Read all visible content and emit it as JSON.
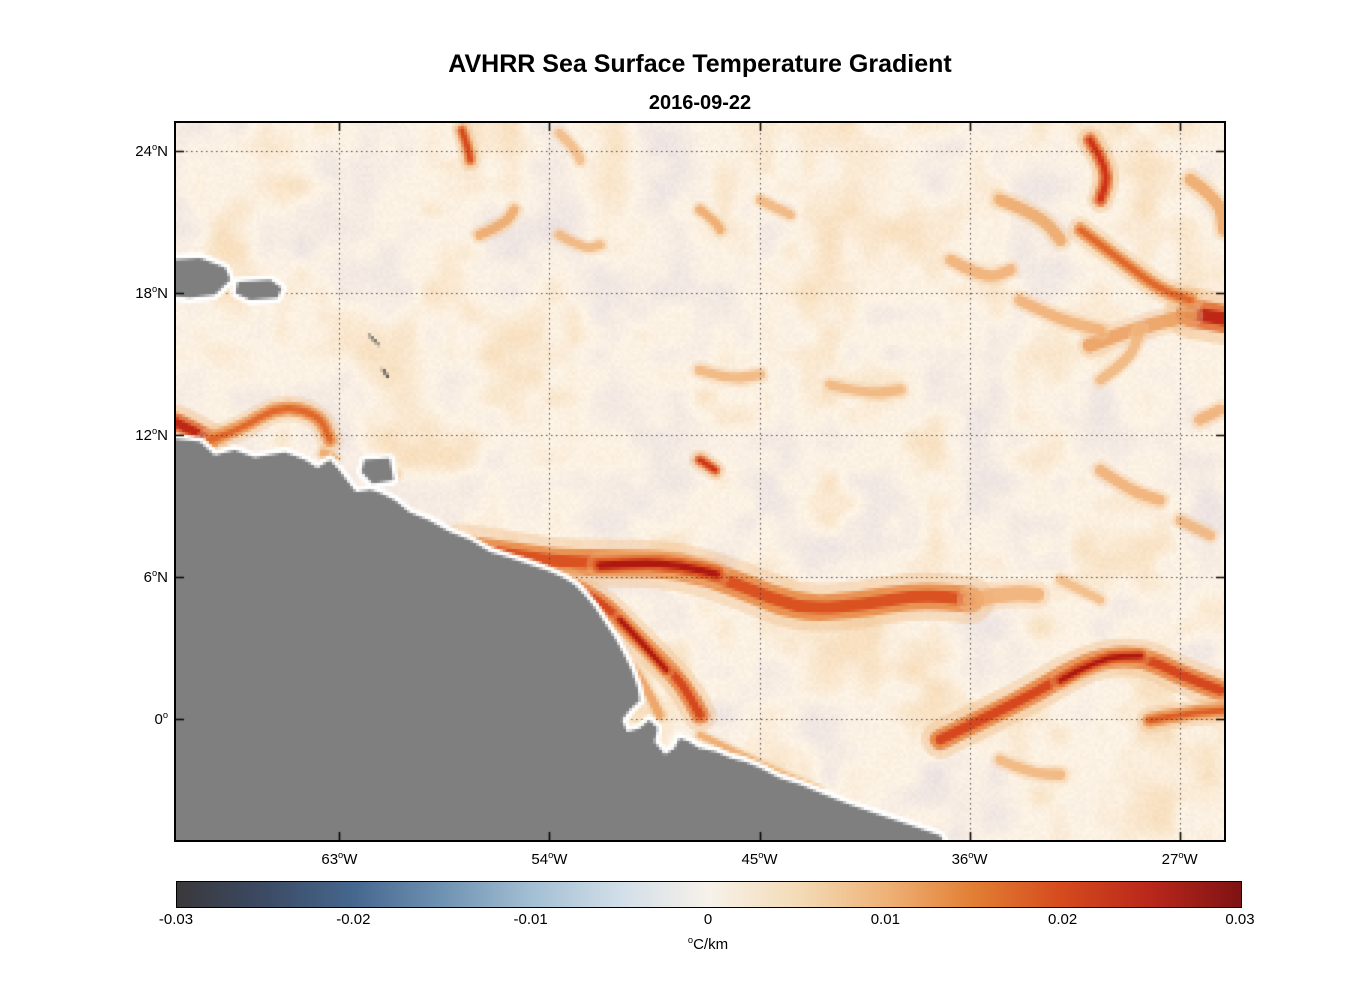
{
  "title": "AVHRR Sea Surface Temperature Gradient",
  "subtitle": "2016-09-22",
  "chart_data": {
    "type": "heatmap",
    "title": "AVHRR Sea Surface Temperature Gradient",
    "subtitle": "2016-09-22",
    "variable": "sea surface temperature gradient",
    "units": "°C/km",
    "grid": true,
    "x_axis": {
      "range": [
        -70.0,
        -25.1
      ],
      "ticks": [
        -63,
        -54,
        -45,
        -36,
        -27
      ],
      "tick_labels": [
        "63°W",
        "54°W",
        "45°W",
        "36°W",
        "27°W"
      ]
    },
    "y_axis": {
      "range": [
        -5.1,
        25.2
      ],
      "ticks": [
        24,
        18,
        12,
        6,
        0
      ],
      "tick_labels": [
        "24°N",
        "18°N",
        "12°N",
        "6°N",
        "0°"
      ]
    },
    "colorbar": {
      "orientation": "horizontal",
      "label": "°C/km",
      "ticks": [
        -0.03,
        -0.02,
        -0.01,
        0,
        0.01,
        0.02,
        0.03
      ],
      "tick_labels": [
        "-0.03",
        "-0.02",
        "-0.01",
        "0",
        "0.01",
        "0.02",
        "0.03"
      ],
      "stops": [
        {
          "pos": 0.0,
          "color": "#3a393c"
        },
        {
          "pos": 0.08,
          "color": "#3c4a63"
        },
        {
          "pos": 0.167,
          "color": "#46688f"
        },
        {
          "pos": 0.25,
          "color": "#7093b3"
        },
        {
          "pos": 0.333,
          "color": "#a3bfd3"
        },
        {
          "pos": 0.417,
          "color": "#d2dfe9"
        },
        {
          "pos": 0.5,
          "color": "#f7f2ea"
        },
        {
          "pos": 0.583,
          "color": "#f4dcb8"
        },
        {
          "pos": 0.667,
          "color": "#efb277"
        },
        {
          "pos": 0.75,
          "color": "#e27e33"
        },
        {
          "pos": 0.833,
          "color": "#d54a1e"
        },
        {
          "pos": 0.917,
          "color": "#b8271b"
        },
        {
          "pos": 1.0,
          "color": "#7f1314"
        }
      ]
    },
    "colors": {
      "land": "#7f7f7f",
      "coast": "#ffffff",
      "ocean_base": "#fcf2e4",
      "grid": "#2d2d3c",
      "axis": "#000000"
    },
    "land_polygons": [
      [
        [
          -0.02,
          0.436
        ],
        [
          0.023,
          0.445
        ],
        [
          0.037,
          0.463
        ],
        [
          0.056,
          0.456
        ],
        [
          0.075,
          0.467
        ],
        [
          0.104,
          0.459
        ],
        [
          0.123,
          0.47
        ],
        [
          0.135,
          0.481
        ],
        [
          0.147,
          0.47
        ],
        [
          0.156,
          0.484
        ],
        [
          0.164,
          0.5
        ],
        [
          0.172,
          0.515
        ],
        [
          0.186,
          0.512
        ],
        [
          0.196,
          0.517
        ],
        [
          0.209,
          0.526
        ],
        [
          0.223,
          0.543
        ],
        [
          0.242,
          0.554
        ],
        [
          0.261,
          0.57
        ],
        [
          0.281,
          0.582
        ],
        [
          0.3,
          0.598
        ],
        [
          0.319,
          0.607
        ],
        [
          0.338,
          0.616
        ],
        [
          0.357,
          0.626
        ],
        [
          0.371,
          0.635
        ],
        [
          0.381,
          0.644
        ],
        [
          0.39,
          0.658
        ],
        [
          0.4,
          0.676
        ],
        [
          0.409,
          0.696
        ],
        [
          0.419,
          0.718
        ],
        [
          0.428,
          0.742
        ],
        [
          0.435,
          0.763
        ],
        [
          0.441,
          0.788
        ],
        [
          0.443,
          0.805
        ],
        [
          0.433,
          0.819
        ],
        [
          0.426,
          0.833
        ],
        [
          0.431,
          0.849
        ],
        [
          0.443,
          0.844
        ],
        [
          0.452,
          0.833
        ],
        [
          0.46,
          0.844
        ],
        [
          0.457,
          0.863
        ],
        [
          0.467,
          0.881
        ],
        [
          0.476,
          0.872
        ],
        [
          0.481,
          0.858
        ],
        [
          0.49,
          0.863
        ],
        [
          0.5,
          0.872
        ],
        [
          0.514,
          0.877
        ],
        [
          0.529,
          0.886
        ],
        [
          0.543,
          0.891
        ],
        [
          0.557,
          0.9
        ],
        [
          0.576,
          0.914
        ],
        [
          0.595,
          0.923
        ],
        [
          0.619,
          0.937
        ],
        [
          0.643,
          0.951
        ],
        [
          0.672,
          0.965
        ],
        [
          0.7,
          0.979
        ],
        [
          0.729,
          0.994
        ],
        [
          0.745,
          1.03
        ],
        [
          -0.02,
          1.03
        ]
      ],
      [
        [
          0.18,
          0.47
        ],
        [
          0.204,
          0.468
        ],
        [
          0.208,
          0.498
        ],
        [
          0.188,
          0.503
        ],
        [
          0.177,
          0.486
        ]
      ],
      [
        [
          -0.02,
          0.192
        ],
        [
          0.023,
          0.188
        ],
        [
          0.047,
          0.202
        ],
        [
          0.052,
          0.219
        ],
        [
          0.037,
          0.24
        ],
        [
          0.013,
          0.244
        ],
        [
          -0.02,
          0.238
        ]
      ],
      [
        [
          0.059,
          0.222
        ],
        [
          0.09,
          0.219
        ],
        [
          0.101,
          0.23
        ],
        [
          0.097,
          0.244
        ],
        [
          0.071,
          0.247
        ],
        [
          0.057,
          0.237
        ]
      ]
    ],
    "island_marks": [
      [
        [
          0.185,
          0.297
        ],
        [
          0.193,
          0.308
        ]
      ],
      [
        [
          0.198,
          0.344
        ],
        [
          0.202,
          0.354
        ]
      ]
    ],
    "fronts": [
      {
        "pts": [
          [
            0.271,
            0.592
          ],
          [
            0.328,
            0.604
          ],
          [
            0.366,
            0.612
          ],
          [
            0.424,
            0.614
          ],
          [
            0.481,
            0.616
          ],
          [
            0.538,
            0.644
          ],
          [
            0.595,
            0.679
          ],
          [
            0.653,
            0.672
          ],
          [
            0.71,
            0.658
          ],
          [
            0.758,
            0.665
          ]
        ],
        "w": 24,
        "i": 0.82
      },
      {
        "pts": [
          [
            0.405,
            0.617
          ],
          [
            0.443,
            0.613
          ],
          [
            0.481,
            0.616
          ],
          [
            0.515,
            0.629
          ]
        ],
        "w": 14,
        "i": 1.0
      },
      {
        "pts": [
          [
            0.758,
            0.665
          ],
          [
            0.792,
            0.655
          ],
          [
            0.821,
            0.658
          ]
        ],
        "w": 14,
        "i": 0.6
      },
      {
        "pts": [
          [
            0.376,
            0.644
          ],
          [
            0.405,
            0.665
          ],
          [
            0.433,
            0.707
          ],
          [
            0.462,
            0.749
          ],
          [
            0.485,
            0.784
          ],
          [
            0.5,
            0.826
          ]
        ],
        "w": 16,
        "i": 0.85
      },
      {
        "pts": [
          [
            0.424,
            0.693
          ],
          [
            0.447,
            0.728
          ],
          [
            0.468,
            0.763
          ]
        ],
        "w": 9,
        "i": 1.0
      },
      {
        "pts": [
          [
            0.395,
            0.686
          ],
          [
            0.424,
            0.735
          ],
          [
            0.448,
            0.784
          ],
          [
            0.462,
            0.826
          ]
        ],
        "w": 8,
        "i": 0.7
      },
      {
        "pts": [
          [
            0.729,
            0.86
          ],
          [
            0.777,
            0.826
          ],
          [
            0.824,
            0.791
          ],
          [
            0.872,
            0.749
          ],
          [
            0.92,
            0.742
          ],
          [
            0.958,
            0.77
          ],
          [
            0.996,
            0.791
          ]
        ],
        "w": 19,
        "i": 0.85
      },
      {
        "pts": [
          [
            0.844,
            0.777
          ],
          [
            0.882,
            0.745
          ],
          [
            0.92,
            0.743
          ]
        ],
        "w": 11,
        "i": 1.0
      },
      {
        "pts": [
          [
            0.929,
            0.833
          ],
          [
            0.967,
            0.823
          ],
          [
            1.0,
            0.819
          ]
        ],
        "w": 13,
        "i": 0.78
      },
      {
        "pts": [
          [
            0.0,
            0.418
          ],
          [
            0.019,
            0.432
          ],
          [
            0.032,
            0.442
          ]
        ],
        "w": 18,
        "i": 0.95
      },
      {
        "pts": [
          [
            0.032,
            0.442
          ],
          [
            0.061,
            0.428
          ],
          [
            0.099,
            0.393
          ],
          [
            0.137,
            0.407
          ],
          [
            0.147,
            0.442
          ]
        ],
        "w": 13,
        "i": 0.75
      },
      {
        "pts": [
          [
            0.968,
            0.265
          ],
          [
            1.02,
            0.278
          ]
        ],
        "w": 26,
        "i": 0.95
      },
      {
        "pts": [
          [
            0.872,
            0.31
          ],
          [
            0.91,
            0.289
          ],
          [
            0.968,
            0.268
          ]
        ],
        "w": 13,
        "i": 0.7
      },
      {
        "pts": [
          [
            0.872,
            0.024
          ],
          [
            0.891,
            0.066
          ],
          [
            0.882,
            0.107
          ]
        ],
        "w": 13,
        "i": 0.9
      },
      {
        "pts": [
          [
            0.786,
            0.107
          ],
          [
            0.824,
            0.128
          ],
          [
            0.844,
            0.163
          ]
        ],
        "w": 11,
        "i": 0.65
      },
      {
        "pts": [
          [
            0.739,
            0.191
          ],
          [
            0.772,
            0.219
          ],
          [
            0.796,
            0.205
          ]
        ],
        "w": 10,
        "i": 0.6
      },
      {
        "pts": [
          [
            0.863,
            0.149
          ],
          [
            0.901,
            0.191
          ],
          [
            0.939,
            0.233
          ],
          [
            0.968,
            0.247
          ]
        ],
        "w": 13,
        "i": 0.75
      },
      {
        "pts": [
          [
            0.968,
            0.079
          ],
          [
            0.996,
            0.107
          ],
          [
            1.0,
            0.149
          ]
        ],
        "w": 11,
        "i": 0.65
      },
      {
        "pts": [
          [
            0.805,
            0.247
          ],
          [
            0.844,
            0.275
          ],
          [
            0.882,
            0.289
          ]
        ],
        "w": 10,
        "i": 0.6
      },
      {
        "pts": [
          [
            0.882,
            0.358
          ],
          [
            0.91,
            0.331
          ],
          [
            0.92,
            0.289
          ]
        ],
        "w": 9,
        "i": 0.55
      },
      {
        "pts": [
          [
            0.273,
            0.01
          ],
          [
            0.279,
            0.035
          ],
          [
            0.281,
            0.052
          ]
        ],
        "w": 10,
        "i": 0.85
      },
      {
        "pts": [
          [
            0.29,
            0.156
          ],
          [
            0.314,
            0.142
          ],
          [
            0.323,
            0.121
          ]
        ],
        "w": 9,
        "i": 0.65
      },
      {
        "pts": [
          [
            0.366,
            0.156
          ],
          [
            0.39,
            0.177
          ],
          [
            0.405,
            0.17
          ]
        ],
        "w": 8,
        "i": 0.55
      },
      {
        "pts": [
          [
            0.5,
            0.345
          ],
          [
            0.529,
            0.358
          ],
          [
            0.557,
            0.351
          ]
        ],
        "w": 9,
        "i": 0.55
      },
      {
        "pts": [
          [
            0.624,
            0.365
          ],
          [
            0.662,
            0.379
          ],
          [
            0.691,
            0.372
          ]
        ],
        "w": 9,
        "i": 0.55
      },
      {
        "pts": [
          [
            0.5,
            0.47
          ],
          [
            0.51,
            0.48
          ],
          [
            0.514,
            0.484
          ]
        ],
        "w": 10,
        "i": 0.9
      },
      {
        "pts": [
          [
            0.882,
            0.484
          ],
          [
            0.91,
            0.512
          ],
          [
            0.939,
            0.526
          ]
        ],
        "w": 10,
        "i": 0.6
      },
      {
        "pts": [
          [
            0.958,
            0.554
          ],
          [
            0.987,
            0.575
          ]
        ],
        "w": 9,
        "i": 0.55
      },
      {
        "pts": [
          [
            0.844,
            0.637
          ],
          [
            0.882,
            0.665
          ]
        ],
        "w": 8,
        "i": 0.5
      },
      {
        "pts": [
          [
            0.5,
            0.854
          ],
          [
            0.538,
            0.881
          ],
          [
            0.576,
            0.907
          ],
          [
            0.614,
            0.93
          ]
        ],
        "w": 6,
        "i": 0.65
      },
      {
        "pts": [
          [
            0.198,
            0.481
          ],
          [
            0.208,
            0.491
          ]
        ],
        "w": 9,
        "i": 0.7
      },
      {
        "pts": [
          [
            0.141,
            0.46
          ],
          [
            0.151,
            0.469
          ]
        ],
        "w": 8,
        "i": 0.65
      },
      {
        "pts": [
          [
            0.366,
            0.014
          ],
          [
            0.381,
            0.035
          ],
          [
            0.386,
            0.052
          ]
        ],
        "w": 8,
        "i": 0.5
      },
      {
        "pts": [
          [
            0.5,
            0.121
          ],
          [
            0.514,
            0.138
          ],
          [
            0.519,
            0.149
          ]
        ],
        "w": 8,
        "i": 0.65
      },
      {
        "pts": [
          [
            0.557,
            0.107
          ],
          [
            0.576,
            0.121
          ],
          [
            0.586,
            0.128
          ]
        ],
        "w": 8,
        "i": 0.55
      },
      {
        "pts": [
          [
            0.977,
            0.414
          ],
          [
            0.996,
            0.4
          ]
        ],
        "w": 10,
        "i": 0.6
      },
      {
        "pts": [
          [
            0.786,
            0.888
          ],
          [
            0.815,
            0.907
          ],
          [
            0.844,
            0.909
          ]
        ],
        "w": 9,
        "i": 0.55
      }
    ]
  }
}
